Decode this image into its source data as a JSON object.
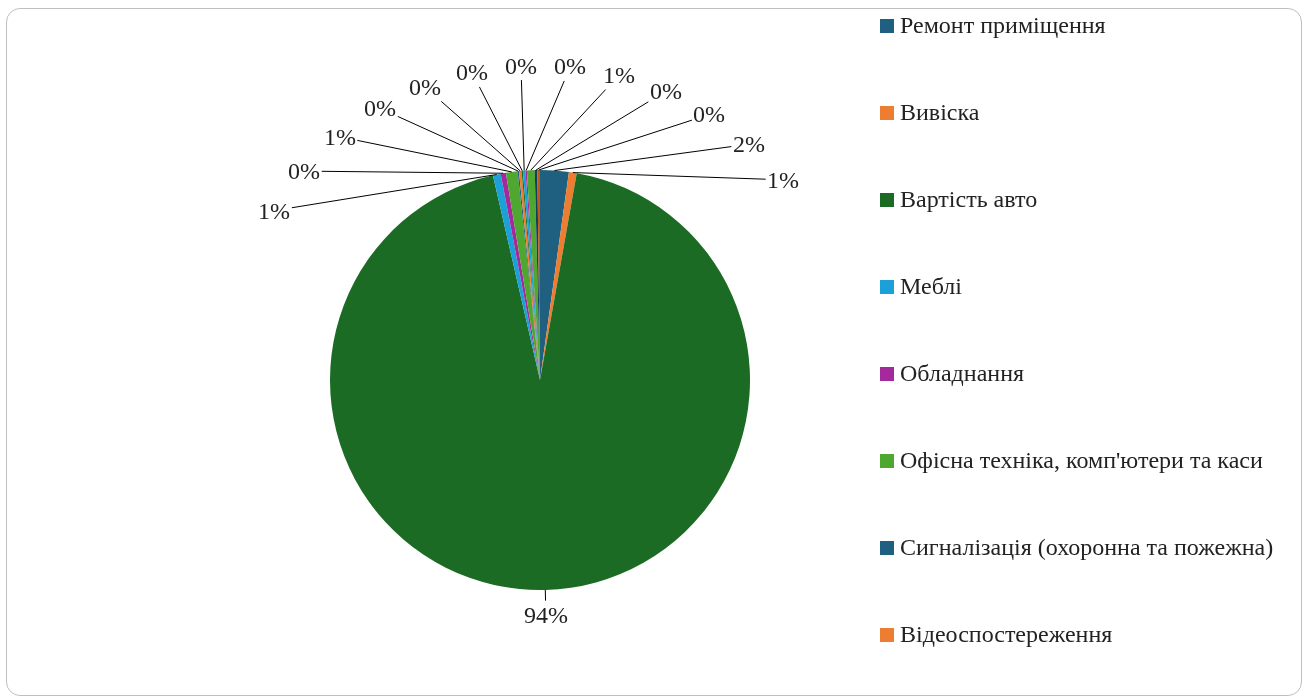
{
  "chart_data": {
    "type": "pie",
    "categories": [
      "Ремонт приміщення",
      "Вивіска",
      "Вартість авто",
      "Меблі",
      "Обладнання",
      "Офісна техніка, комп'ютери та каси",
      "Сигналізація (охоронна та пожежна)",
      "Відеоспостереження",
      null,
      null,
      null,
      null,
      null,
      null
    ],
    "values": [
      2.2,
      0.6,
      93.6,
      0.6,
      0.4,
      0.9,
      0.1,
      0.2,
      0.1,
      0.2,
      0.1,
      0.6,
      0.2,
      0.2
    ],
    "value_labels": [
      "2%",
      "1%",
      "94%",
      "1%",
      "0%",
      "1%",
      "0%",
      "0%",
      "0%",
      "0%",
      "0%",
      "1%",
      "0%",
      "0%"
    ],
    "colors": [
      "#1f5f7f",
      "#ed7d31",
      "#1b6b24",
      "#1ba1d8",
      "#a3299c",
      "#4ea72e",
      "#1f5f7f",
      "#ed7d31",
      "#1b6b24",
      "#1ba1d8",
      "#a3299c",
      "#4ea72e",
      "#0f3f5f",
      "#c05a10"
    ],
    "legend": "right"
  }
}
